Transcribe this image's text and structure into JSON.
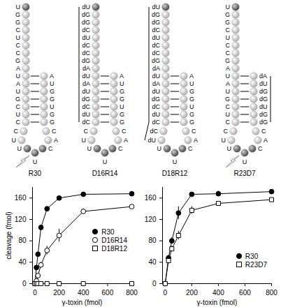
{
  "diagram": {
    "constructs": [
      {
        "label": "R30",
        "cleaved": true,
        "tail": [
          "U",
          "G",
          "G",
          "C",
          "U",
          "C",
          "C",
          "G",
          "A"
        ],
        "stem5": [
          "U",
          "A",
          "U",
          "G",
          "C",
          "U",
          "C"
        ],
        "loop": [
          "C",
          "U",
          "U",
          "U",
          "C",
          "A",
          "C"
        ],
        "stem3": [
          "A",
          "U",
          "G",
          "G",
          "U",
          "G",
          "G"
        ]
      },
      {
        "label": "D16R14",
        "cleaved": false,
        "tail": [
          "dU",
          "dG",
          "dG",
          "dC",
          "dU",
          "dC",
          "dC",
          "dG",
          "dA"
        ],
        "stem5": [
          "dU",
          "dA",
          "dU",
          "dG",
          "dC",
          "dU",
          "dC"
        ],
        "loop": [
          "C",
          "U",
          "U",
          "U",
          "C",
          "A",
          "C"
        ],
        "stem3": [
          "A",
          "U",
          "G",
          "G",
          "U",
          "G",
          "G"
        ]
      },
      {
        "label": "D18R12",
        "cleaved": false,
        "tail": [
          "dU",
          "dG",
          "dG",
          "dC",
          "dU",
          "dC",
          "dC",
          "dG",
          "dA"
        ],
        "stem5": [
          "dU",
          "dA",
          "dU",
          "dG",
          "dC",
          "dU",
          "dC"
        ],
        "loop": [
          "dC",
          "dU",
          "U",
          "U",
          "C",
          "A",
          "C"
        ],
        "stem3": [
          "A",
          "U",
          "G",
          "G",
          "U",
          "G",
          "G"
        ]
      },
      {
        "label": "R23D7",
        "cleaved": true,
        "tail": [
          "U",
          "G",
          "G",
          "C",
          "U",
          "C",
          "C",
          "G",
          "A"
        ],
        "stem5": [
          "U",
          "A",
          "U",
          "G",
          "C",
          "U",
          "C"
        ],
        "loop": [
          "C",
          "U",
          "U",
          "U",
          "C",
          "A",
          "C"
        ],
        "stem3": [
          "dA",
          "dU",
          "dG",
          "dG",
          "dU",
          "dG",
          "dG"
        ]
      }
    ]
  },
  "chart_data": [
    {
      "type": "line",
      "x": [
        0,
        12.5,
        25,
        50,
        100,
        200,
        400,
        800
      ],
      "xlabel": "γ-toxin (fmol)",
      "ylabel": "cleavage (fmol)",
      "xlim": [
        -20,
        800
      ],
      "ylim": [
        0,
        180
      ],
      "xticks": [
        0,
        200,
        400,
        600,
        800
      ],
      "yticks": [
        0,
        40,
        80,
        120,
        160
      ],
      "legend": "right",
      "series": [
        {
          "name": "R30",
          "color": "#000000",
          "marker": "circle-filled",
          "values": [
            0,
            30,
            55,
            105,
            140,
            160,
            167,
            168
          ]
        },
        {
          "name": "D16R14",
          "color": "#000000",
          "marker": "circle-open",
          "values": [
            0,
            5,
            15,
            35,
            62,
            90,
            135,
            144
          ],
          "errors": [
            null,
            null,
            4,
            5,
            8,
            12,
            5,
            3
          ]
        },
        {
          "name": "D18R12",
          "color": "#000000",
          "marker": "square-open",
          "values": [
            0,
            0,
            0,
            0,
            0,
            0,
            0,
            0
          ]
        }
      ]
    },
    {
      "type": "line",
      "x": [
        0,
        25,
        50,
        100,
        200,
        400,
        800
      ],
      "xlabel": "γ-toxin (fmol)",
      "xlim": [
        -20,
        800
      ],
      "ylim": [
        0,
        180
      ],
      "xticks": [
        0,
        200,
        400,
        600,
        800
      ],
      "yticks": [
        0,
        40,
        80,
        120,
        160
      ],
      "legend": "bottom-right",
      "series": [
        {
          "name": "R30",
          "color": "#000000",
          "marker": "circle-filled",
          "values": [
            0,
            48,
            80,
            132,
            167,
            168,
            172
          ],
          "errors": [
            null,
            5,
            6,
            12,
            3,
            5,
            3
          ]
        },
        {
          "name": "R23D7",
          "color": "#000000",
          "marker": "square-open",
          "values": [
            0,
            43,
            65,
            90,
            137,
            150,
            157
          ],
          "errors": [
            null,
            4,
            5,
            8,
            7,
            3,
            3
          ]
        }
      ]
    }
  ]
}
